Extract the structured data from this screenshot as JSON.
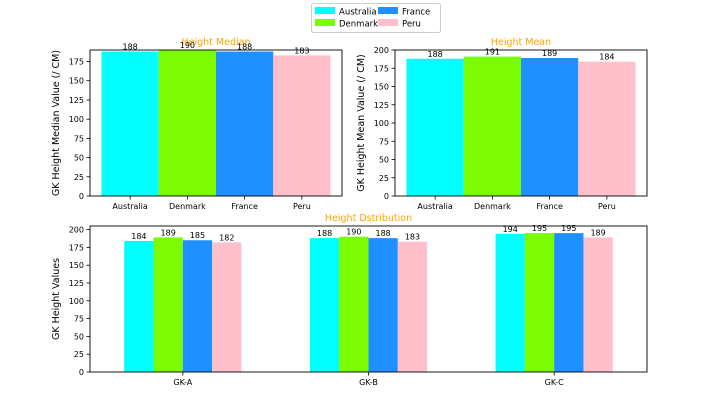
{
  "legend": {
    "placement": "top-center",
    "items": [
      {
        "label": "Australia",
        "color": "#00ffff"
      },
      {
        "label": "Denmark",
        "color": "#7cfc00"
      },
      {
        "label": "France",
        "color": "#1e90ff"
      },
      {
        "label": "Peru",
        "color": "#ffc0cb"
      }
    ]
  },
  "chart_data": [
    {
      "type": "bar",
      "title": "Height Median",
      "title_color": "#ffa500",
      "ylabel": "GK Height Median Value (/ CM)",
      "xlabel": "",
      "categories": [
        "Australia",
        "Denmark",
        "France",
        "Peru"
      ],
      "values": [
        188,
        190,
        188,
        183
      ],
      "colors": [
        "#00ffff",
        "#7cfc00",
        "#1e90ff",
        "#ffc0cb"
      ],
      "ylim": [
        0,
        190
      ],
      "yticks": [
        0,
        25,
        50,
        75,
        100,
        125,
        150,
        175
      ],
      "grid": false
    },
    {
      "type": "bar",
      "title": "Height Mean",
      "title_color": "#ffa500",
      "ylabel": "GK Height Mean Value (/ CM)",
      "xlabel": "",
      "categories": [
        "Australia",
        "Denmark",
        "France",
        "Peru"
      ],
      "values": [
        188,
        191,
        189,
        184
      ],
      "colors": [
        "#00ffff",
        "#7cfc00",
        "#1e90ff",
        "#ffc0cb"
      ],
      "ylim": [
        0,
        200
      ],
      "yticks": [
        0,
        25,
        50,
        75,
        100,
        125,
        150,
        175,
        200
      ],
      "grid": false
    },
    {
      "type": "bar",
      "title": "Height Dstribution",
      "title_color": "#ffa500",
      "ylabel": "GK Height Values",
      "xlabel": "",
      "categories": [
        "GK-A",
        "GK-B",
        "GK-C"
      ],
      "series": [
        {
          "name": "Australia",
          "values": [
            184,
            188,
            194
          ],
          "color": "#00ffff"
        },
        {
          "name": "Denmark",
          "values": [
            189,
            190,
            195
          ],
          "color": "#7cfc00"
        },
        {
          "name": "France",
          "values": [
            185,
            188,
            195
          ],
          "color": "#1e90ff"
        },
        {
          "name": "Peru",
          "values": [
            182,
            183,
            189
          ],
          "color": "#ffc0cb"
        }
      ],
      "ylim": [
        0,
        205
      ],
      "yticks": [
        0,
        25,
        50,
        75,
        100,
        125,
        150,
        175,
        200
      ],
      "grid": false
    }
  ]
}
